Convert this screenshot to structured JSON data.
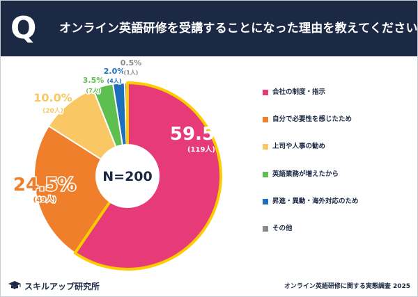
{
  "header": {
    "q_mark": "Q",
    "question": "オンライン英語研修を受講することになった理由を教えてください"
  },
  "chart_data": {
    "type": "pie",
    "center_label": "N=200",
    "slices": [
      {
        "label": "会社の制度・指示",
        "pct_text": "59.5%",
        "value": 59.5,
        "count_text": "(119人)",
        "color": "#e63b78",
        "label_color": "#ffffff"
      },
      {
        "label": "自分で必要性を感じたため",
        "pct_text": "24.5%",
        "value": 24.5,
        "count_text": "(49人)",
        "color": "#ef7f2b",
        "label_color": "#ef7f2b"
      },
      {
        "label": "上司や人事の勧め",
        "pct_text": "10.0%",
        "value": 10.0,
        "count_text": "(20人)",
        "color": "#f9c764",
        "label_color": "#f9c764"
      },
      {
        "label": "英語業務が増えたから",
        "pct_text": "3.5%",
        "value": 3.5,
        "count_text": "(7人)",
        "color": "#5cbf4f",
        "label_color": "#5cbf4f"
      },
      {
        "label": "昇進・異動・海外対応のため",
        "pct_text": "2.0%",
        "value": 2.0,
        "count_text": "(4人)",
        "color": "#1d6fbd",
        "label_color": "#1d6fbd"
      },
      {
        "label": "その他",
        "pct_text": "0.5%",
        "value": 0.5,
        "count_text": "(1人)",
        "color": "#8a8a8a",
        "label_color": "#8a8a8a"
      }
    ]
  },
  "footer": {
    "brand": "スキルアップ研究所",
    "source": "オンライン英語研修に関する実態調査 2025"
  }
}
